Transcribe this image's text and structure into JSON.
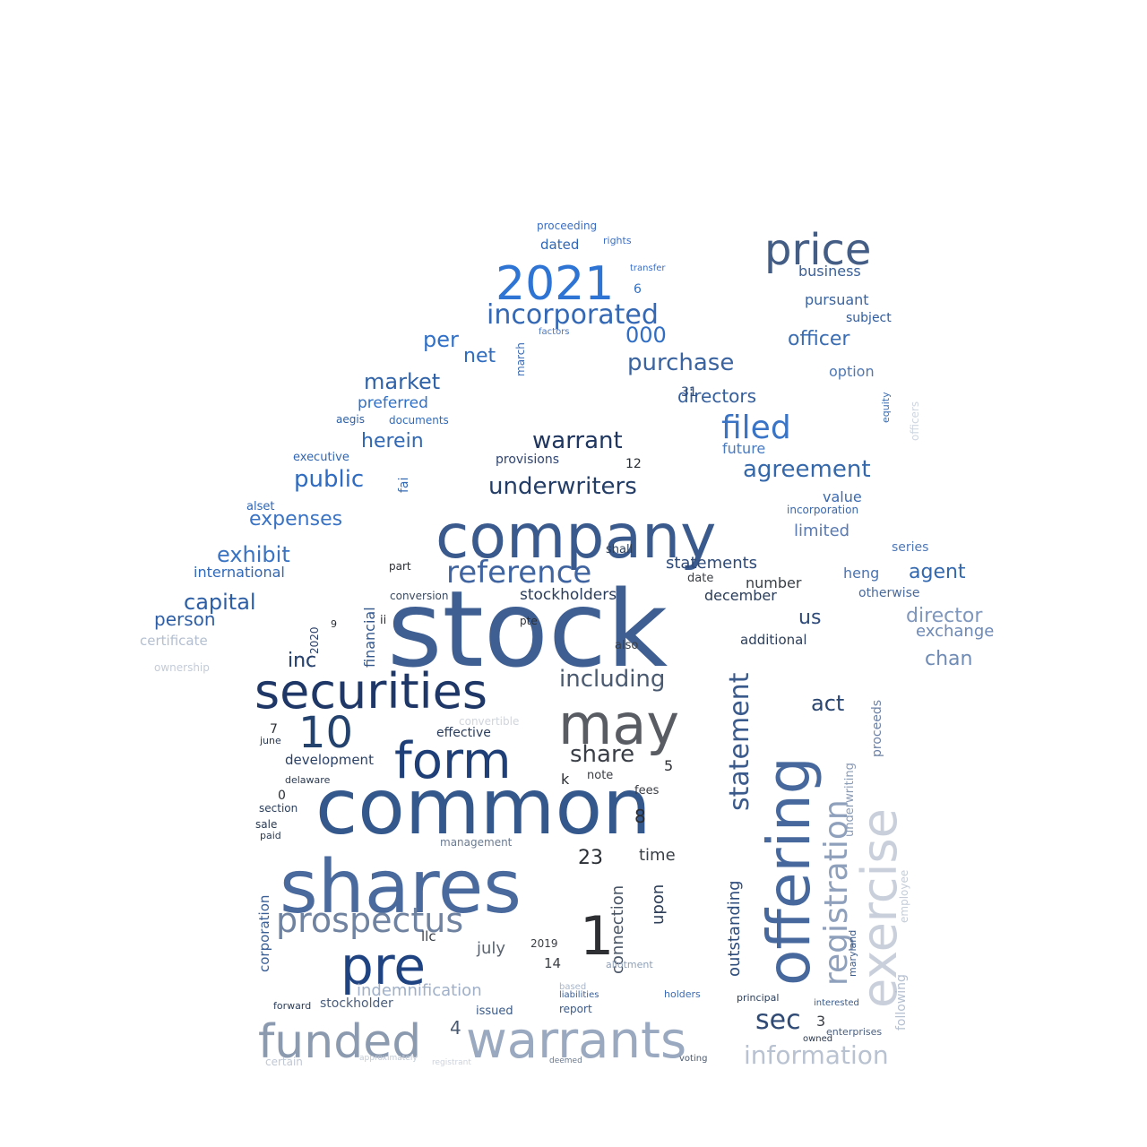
{
  "words": [
    {
      "text": "stock",
      "color": "#3f5f92"
    },
    {
      "text": "common",
      "color": "#34578c"
    },
    {
      "text": "shares",
      "color": "#4a6a9e"
    },
    {
      "text": "company",
      "color": "#3a5a8e"
    },
    {
      "text": "offering",
      "color": "#47689c"
    },
    {
      "text": "may",
      "color": "#595d63"
    },
    {
      "text": "securities",
      "color": "#1e3766"
    },
    {
      "text": "warrants",
      "color": "#9aa9c0"
    },
    {
      "text": "funded",
      "color": "#8c9ab0"
    },
    {
      "text": "form",
      "color": "#1e3f78"
    },
    {
      "text": "pre",
      "color": "#1f4280"
    },
    {
      "text": "exercise",
      "color": "#c9d0db"
    },
    {
      "text": "prospectus",
      "color": "#6f82a0"
    },
    {
      "text": "price",
      "color": "#445d85"
    },
    {
      "text": "2021",
      "color": "#2e74d4"
    },
    {
      "text": "1",
      "color": "#2e2f33"
    },
    {
      "text": "10",
      "color": "#23426e"
    },
    {
      "text": "registration",
      "color": "#8ea0bb"
    },
    {
      "text": "reference",
      "color": "#3f64a0"
    },
    {
      "text": "statement",
      "color": "#3b5a8c"
    },
    {
      "text": "incorporated",
      "color": "#3468b4"
    },
    {
      "text": "filed",
      "color": "#3a74c6"
    },
    {
      "text": "sec",
      "color": "#2f4a74"
    },
    {
      "text": "underwriters",
      "color": "#233d66"
    },
    {
      "text": "information",
      "color": "#b8c2d0"
    },
    {
      "text": "warrant",
      "color": "#1f3660"
    },
    {
      "text": "purchase",
      "color": "#3a63a0"
    },
    {
      "text": "agreement",
      "color": "#3568aa"
    },
    {
      "text": "public",
      "color": "#2f6bc0"
    },
    {
      "text": "including",
      "color": "#4a5a70"
    },
    {
      "text": "share",
      "color": "#3a3e46"
    },
    {
      "text": "exhibit",
      "color": "#3a73c2"
    },
    {
      "text": "market",
      "color": "#2f62a8"
    },
    {
      "text": "expenses",
      "color": "#3a73c4"
    },
    {
      "text": "capital",
      "color": "#2c5ea6"
    },
    {
      "text": "herein",
      "color": "#3068b6"
    },
    {
      "text": "officer",
      "color": "#3a6db2"
    },
    {
      "text": "per",
      "color": "#3070c8"
    },
    {
      "text": "000",
      "color": "#2f6ec4"
    },
    {
      "text": "directors",
      "color": "#345e9c"
    },
    {
      "text": "net",
      "color": "#2f6cc0"
    },
    {
      "text": "inc",
      "color": "#2a4470"
    },
    {
      "text": "act",
      "color": "#2a4670"
    },
    {
      "text": "us",
      "color": "#2d4a7a"
    },
    {
      "text": "agent",
      "color": "#3468ae"
    },
    {
      "text": "chan",
      "color": "#6f8bb4"
    },
    {
      "text": "director",
      "color": "#7f97bc"
    },
    {
      "text": "person",
      "color": "#2e5fa6"
    },
    {
      "text": "statements",
      "color": "#2e4a78"
    },
    {
      "text": "stockholders",
      "color": "#2a3d5c"
    },
    {
      "text": "outstanding",
      "color": "#2d4c7c"
    },
    {
      "text": "upon",
      "color": "#2f3f58"
    },
    {
      "text": "indemnification",
      "color": "#9fb0c8"
    },
    {
      "text": "connection",
      "color": "#4a5566"
    },
    {
      "text": "july",
      "color": "#5b6470"
    },
    {
      "text": "time",
      "color": "#3a4048"
    },
    {
      "text": "23",
      "color": "#2a2e35"
    },
    {
      "text": "preferred",
      "color": "#3070c6"
    },
    {
      "text": "international",
      "color": "#2f68b8"
    },
    {
      "text": "certificate",
      "color": "#b3bfd0"
    },
    {
      "text": "ownership",
      "color": "#c4ccd8"
    },
    {
      "text": "financial",
      "color": "#34588e"
    },
    {
      "text": "number",
      "color": "#3a4048"
    },
    {
      "text": "december",
      "color": "#2a3c58"
    },
    {
      "text": "additional",
      "color": "#2c3e5a"
    },
    {
      "text": "business",
      "color": "#3a5f96"
    },
    {
      "text": "pursuant",
      "color": "#3a64a0"
    },
    {
      "text": "subject",
      "color": "#2f5c9e"
    },
    {
      "text": "option",
      "color": "#4f78b4"
    },
    {
      "text": "dated",
      "color": "#2f66b4"
    },
    {
      "text": "proceeding",
      "color": "#3b6ec2"
    },
    {
      "text": "rights",
      "color": "#3a6ec4"
    },
    {
      "text": "exchange",
      "color": "#6d89b6"
    },
    {
      "text": "heng",
      "color": "#4a74b0"
    },
    {
      "text": "limited",
      "color": "#5a7ab0"
    },
    {
      "text": "value",
      "color": "#3a6ab2"
    },
    {
      "text": "incorporation",
      "color": "#3a68ac"
    },
    {
      "text": "series",
      "color": "#4f78b6"
    },
    {
      "text": "otherwise",
      "color": "#4a6a9c"
    },
    {
      "text": "development",
      "color": "#2a4066"
    },
    {
      "text": "management",
      "color": "#6a7a90"
    },
    {
      "text": "underwriting",
      "color": "#8a9bb5"
    },
    {
      "text": "proceeds",
      "color": "#6d82a6"
    },
    {
      "text": "following",
      "color": "#b5c0d0"
    },
    {
      "text": "employee",
      "color": "#c5cdd8"
    },
    {
      "text": "officers",
      "color": "#cfd6e0"
    },
    {
      "text": "equity",
      "color": "#3d6db0"
    },
    {
      "text": "future",
      "color": "#4a7ac0"
    },
    {
      "text": "provisions",
      "color": "#2f4470"
    },
    {
      "text": "corporation",
      "color": "#3a5f96"
    },
    {
      "text": "stockholder",
      "color": "#4a5d7a"
    },
    {
      "text": "documents",
      "color": "#2f6bbc"
    },
    {
      "text": "executive",
      "color": "#2f66b4"
    },
    {
      "text": "alset",
      "color": "#2e66b6"
    },
    {
      "text": "aegis",
      "color": "#2f5fa4"
    },
    {
      "text": "fai",
      "color": "#3469b4"
    },
    {
      "text": "march",
      "color": "#3a6ab4"
    },
    {
      "text": "factors",
      "color": "#4a78c0"
    },
    {
      "text": "transfer",
      "color": "#3a6ec6"
    },
    {
      "text": "effective",
      "color": "#2a3c5a"
    },
    {
      "text": "conversion",
      "color": "#3a4a60"
    },
    {
      "text": "convertible",
      "color": "#d0d5dc"
    },
    {
      "text": "2020",
      "color": "#2a4068"
    },
    {
      "text": "2019",
      "color": "#3a3e44"
    },
    {
      "text": "14",
      "color": "#3a3e44"
    },
    {
      "text": "llc",
      "color": "#3a3f48"
    },
    {
      "text": "issued",
      "color": "#3a5a88"
    },
    {
      "text": "report",
      "color": "#3a5a8a"
    },
    {
      "text": "allotment",
      "color": "#8ea0b8"
    },
    {
      "text": "certain",
      "color": "#c0c8d4"
    },
    {
      "text": "approximately",
      "color": "#c3cbd6"
    },
    {
      "text": "registrant",
      "color": "#cdd3dc"
    },
    {
      "text": "maryland",
      "color": "#3a5a8a"
    },
    {
      "text": "holders",
      "color": "#3a6ab4"
    },
    {
      "text": "principal",
      "color": "#2a3e5c"
    },
    {
      "text": "interested",
      "color": "#3a5a88"
    },
    {
      "text": "enterprises",
      "color": "#4a5f80"
    },
    {
      "text": "owned",
      "color": "#2a3a52"
    },
    {
      "text": "liabilities",
      "color": "#3a5e94"
    },
    {
      "text": "based",
      "color": "#a8b6ca"
    },
    {
      "text": "voting",
      "color": "#4a5a70"
    },
    {
      "text": "deemed",
      "color": "#6a7a90"
    },
    {
      "text": "fees",
      "color": "#3a3e44"
    },
    {
      "text": "note",
      "color": "#3a3e44"
    },
    {
      "text": "k",
      "color": "#2a2d33"
    },
    {
      "text": "5",
      "color": "#2e3036"
    },
    {
      "text": "8",
      "color": "#2a2d33"
    },
    {
      "text": "3",
      "color": "#3a3e44"
    },
    {
      "text": "4",
      "color": "#4a5a70"
    },
    {
      "text": "6",
      "color": "#3070c6"
    },
    {
      "text": "12",
      "color": "#2a2e35"
    },
    {
      "text": "31",
      "color": "#2a4a7a"
    },
    {
      "text": "7",
      "color": "#2a2e35"
    },
    {
      "text": "9",
      "color": "#2a2e35"
    },
    {
      "text": "0",
      "color": "#2a2e35"
    },
    {
      "text": "also",
      "color": "#3a4048"
    },
    {
      "text": "pte",
      "color": "#2a2e35"
    },
    {
      "text": "ii",
      "color": "#2a2e35"
    },
    {
      "text": "part",
      "color": "#2a2e35"
    },
    {
      "text": "shall",
      "color": "#2a3e5a"
    },
    {
      "text": "date",
      "color": "#3a3e44"
    },
    {
      "text": "section",
      "color": "#2a3e5c"
    },
    {
      "text": "sale",
      "color": "#2a3a52"
    },
    {
      "text": "paid",
      "color": "#2a3a52"
    },
    {
      "text": "delaware",
      "color": "#2a3a52"
    },
    {
      "text": "june",
      "color": "#2a3a52"
    },
    {
      "text": "forward",
      "color": "#2a3e5c"
    },
    {
      "text": "inc",
      "color": "#2a4470"
    }
  ]
}
